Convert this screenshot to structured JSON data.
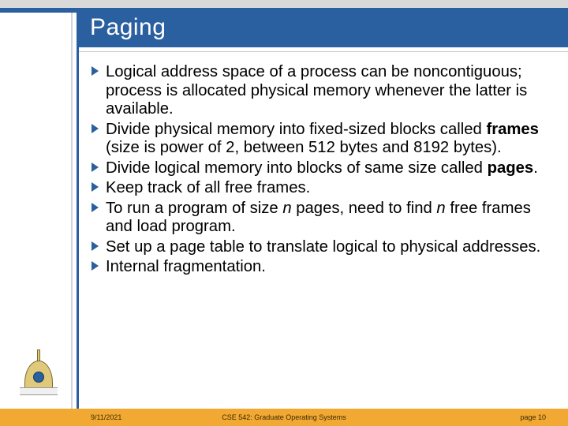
{
  "title": "Paging",
  "bullets": [
    "Logical address space of a process can be noncontiguous; process is allocated physical memory whenever the latter is available.",
    "Divide physical memory into fixed-sized blocks called <b>frames</b> (size is power of 2, between 512 bytes and 8192 bytes).",
    "Divide logical memory into blocks of same size called <b>pages</b>.",
    "Keep track of all free frames.",
    "To run a program of size <em>n</em> pages, need to find <em>n</em> free frames and load program.",
    "Set up a page table to translate logical to physical addresses.",
    "Internal fragmentation."
  ],
  "footer": {
    "date": "9/11/2021",
    "course": "CSE 542: Graduate Operating Systems",
    "page": "page 10"
  },
  "colors": {
    "brand_blue": "#2a5fa0",
    "footer_bg": "#f2a934",
    "top_gray": "#d9d9d9"
  }
}
